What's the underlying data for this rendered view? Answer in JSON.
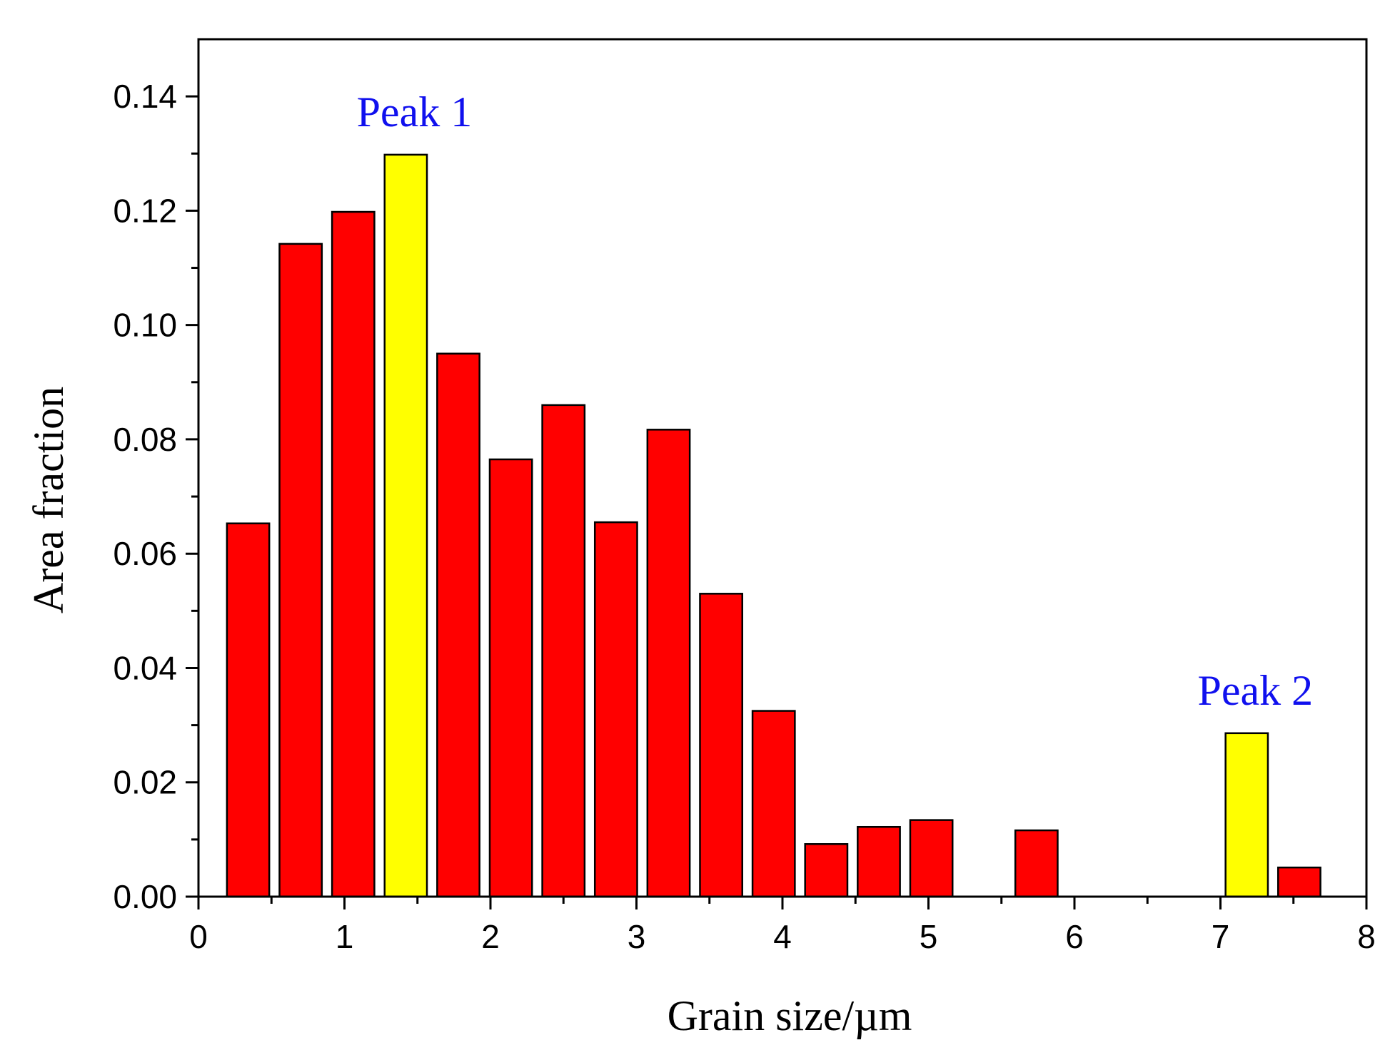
{
  "chart_data": {
    "type": "bar",
    "title": "",
    "xlabel": "Grain size/µm",
    "ylabel": "Area fraction",
    "xlim": [
      0,
      8
    ],
    "ylim": [
      0,
      0.15
    ],
    "x_ticks": [
      0,
      1,
      2,
      3,
      4,
      5,
      6,
      7,
      8
    ],
    "x_tick_labels": [
      "0",
      "1",
      "2",
      "3",
      "4",
      "5",
      "6",
      "7",
      "8"
    ],
    "y_ticks": [
      0,
      0.02,
      0.04,
      0.06,
      0.08,
      0.1,
      0.12,
      0.14
    ],
    "y_tick_labels": [
      "0.00",
      "0.02",
      "0.04",
      "0.06",
      "0.08",
      "0.10",
      "0.12",
      "0.14"
    ],
    "bin_width": 0.36,
    "grid": false,
    "series": [
      {
        "name": "Area fraction",
        "x": [
          0.34,
          0.7,
          1.06,
          1.42,
          1.78,
          2.14,
          2.5,
          2.86,
          3.22,
          3.58,
          3.94,
          4.3,
          4.66,
          5.02,
          5.74,
          7.18,
          7.54
        ],
        "values": [
          0.0653,
          0.1142,
          0.1198,
          0.1298,
          0.095,
          0.0765,
          0.086,
          0.0655,
          0.0817,
          0.053,
          0.0325,
          0.0092,
          0.0122,
          0.0134,
          0.0116,
          0.0286,
          0.0051
        ],
        "highlighted": [
          false,
          false,
          false,
          true,
          false,
          false,
          false,
          false,
          false,
          false,
          false,
          false,
          false,
          false,
          false,
          true,
          false
        ]
      }
    ],
    "annotations": [
      {
        "text": "Peak 1",
        "x": 1.42,
        "y": 0.1298
      },
      {
        "text": "Peak 2",
        "x": 7.18,
        "y": 0.0286
      }
    ],
    "colors": {
      "bar": "#ff0000",
      "bar_highlight": "#ffff00",
      "bar_edge": "#000000",
      "annotation": "#1010ee",
      "axis": "#000000"
    }
  }
}
